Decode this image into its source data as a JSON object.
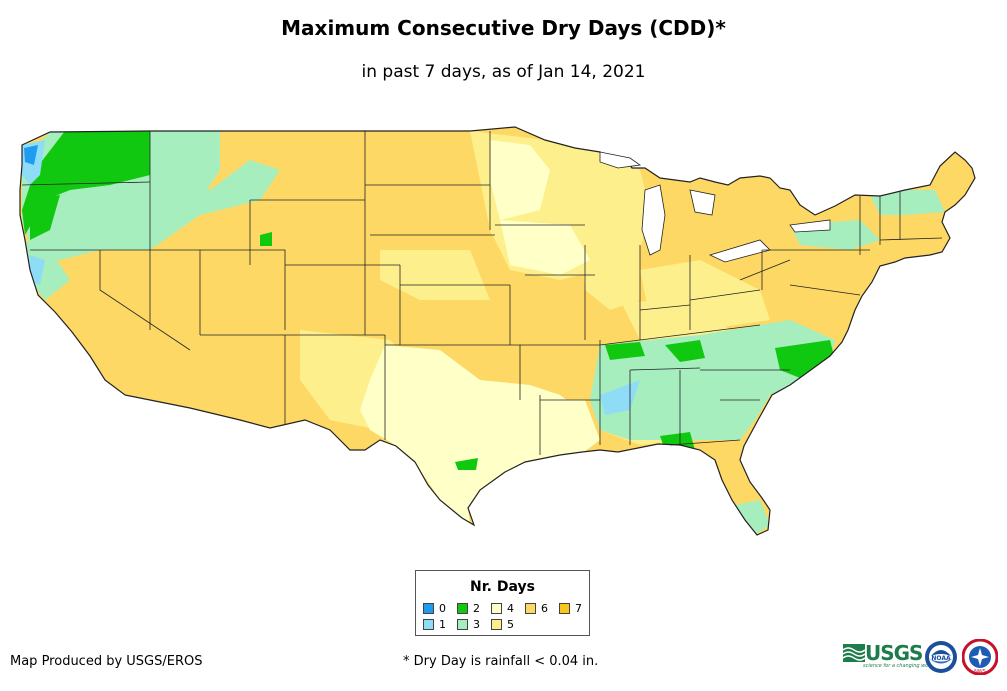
{
  "title": "Maximum Consecutive Dry Days (CDD)*",
  "subtitle": "in past 7 days, as of Jan 14, 2021",
  "legend": {
    "title": "Nr. Days",
    "items": [
      {
        "label": "0",
        "color": "#1f9bf0"
      },
      {
        "label": "1",
        "color": "#8fdcf7"
      },
      {
        "label": "2",
        "color": "#10c810"
      },
      {
        "label": "3",
        "color": "#a6eebe"
      },
      {
        "label": "4",
        "color": "#ffffc8"
      },
      {
        "label": "5",
        "color": "#fdf08c"
      },
      {
        "label": "6",
        "color": "#fdd865"
      },
      {
        "label": "7",
        "color": "#fbc61b"
      }
    ]
  },
  "credit": "Map Produced by USGS/EROS",
  "footnote": "* Dry Day is rainfall < 0.04 in.",
  "logos": {
    "usgs_text": "USGS",
    "usgs_tagline": "science for a changing world",
    "noaa_text": "NOAA",
    "nws_text": "NWS"
  }
}
